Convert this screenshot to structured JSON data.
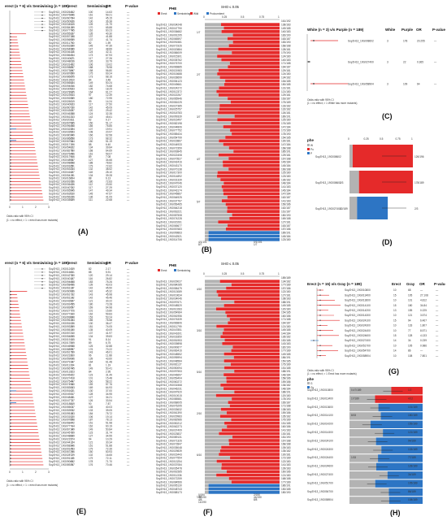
{
  "figure": {
    "panel_labels": [
      "(A)",
      "(B)",
      "(C)",
      "(D)",
      "(E)",
      "(F)",
      "(G)",
      "(H)"
    ],
    "colors": {
      "red": "#e52a2a",
      "blue": "#2d75c4",
      "gray": "#b3b3b3",
      "dark": "#333333"
    }
  },
  "panelA": {
    "title": "erect (n = 6) v/s Semiwining (n = 189)",
    "headers": [
      "erect",
      "Semiwining",
      "OR",
      "P-value"
    ],
    "x_ticks": [
      "0",
      "1",
      "2",
      "3"
    ],
    "legend_line1": "Odds ratio with 95% CI",
    "legend_line2": "(1 = no effect; > 1 = erect has more mutants)",
    "row_count": 62
  },
  "panelB": {
    "legend_title": "PHE",
    "legend_items": [
      "Erect",
      "Semiwining",
      "Wild",
      "Prolcumbent"
    ],
    "axis_title": "SHO ≤ 0.05",
    "x_ticks": [
      "0",
      "0.25",
      "0.5",
      "0.75",
      "1"
    ],
    "left_labels": [
      "1/7",
      "2/7",
      "3/7",
      "4/7",
      "5/7"
    ],
    "right_top": "161/192",
    "bottom_labels": [
      "4/1/101",
      "0/1/101",
      "8/7",
      "1/7"
    ],
    "row_count": 62
  },
  "panelC": {
    "title": "White (n = 3) v/s Purple (n = 189)",
    "headers": [
      "White",
      "Purple",
      "OR",
      "P-value"
    ],
    "rows": [
      {
        "gene": "SoyZH13_19G008602",
        "white": "3",
        "purple": "178",
        "or": "20.255",
        "p": "—"
      },
      {
        "gene": "SoyZH13_19G027400",
        "white": "3",
        "purple": "22",
        "or": "0.365",
        "p": "—"
      },
      {
        "gene": "SoyZH13_19G058904",
        "white": "3",
        "purple": "109",
        "or": "64",
        "p": "—"
      }
    ],
    "legend_line1": "Odds ratio with 95% CI",
    "legend_line2": "(1 = no effect; > 1 White has more mutants)"
  },
  "panelD": {
    "legend_title": "phe",
    "legend_items": [
      "W",
      "Pu",
      "P"
    ],
    "x_ticks": [
      "0",
      "0.25",
      "0.5",
      "0.75",
      "1"
    ],
    "rows": [
      {
        "gene": "SoyZH13_19G008602",
        "left": "",
        "right": "126/196"
      },
      {
        "gene": "SoyZH13_19G008602",
        "left": "1/3",
        "right": "178/189"
      },
      {
        "gene": "SoyZH13_19G027400",
        "left": "22/189",
        "right": "2/3"
      }
    ]
  },
  "panelE": {
    "title": "erect (n = 6) v/s Semiwining (n = 189)",
    "headers": [
      "erect",
      "Semiwining",
      "OR",
      "P-value"
    ],
    "x_ticks": [
      "0",
      "1",
      "2",
      "3"
    ],
    "legend_line1": "Odds ratio with 95% CI",
    "legend_line2": "(1 = no effect; > 1 = erect has more mutants)",
    "row_count": 62
  },
  "panelF": {
    "legend_title": "PHE",
    "legend_items": [
      "Erect",
      "Semiwining"
    ],
    "axis_title": "SHO ≤ 0.05",
    "x_ticks": [
      "0",
      "0.25",
      "0.5",
      "0.75",
      "1"
    ],
    "right_top": "189/189",
    "left_labels": [
      "4/10",
      "3/10",
      "5/10",
      "2/10",
      "6/10",
      "1/10"
    ],
    "bottom_labels": [
      "0/190",
      "2/190",
      "40/190",
      "44/190",
      "4/8",
      "8/8",
      "14/190"
    ],
    "row_count": 62
  },
  "panelG": {
    "title": "Erect (n = 15) v/s Gray (n = 189)",
    "headers": [
      "Erect",
      "Gray",
      "OR",
      "P-value"
    ],
    "rows": [
      {
        "gene": "SoyZH13_19G010800",
        "a": "10",
        "b": "68",
        "or": "—",
        "p": "—"
      },
      {
        "gene": "SoyZH13_19G013400",
        "a": "15",
        "b": "105",
        "or": "27.108",
        "p": "—"
      },
      {
        "gene": "SoyZH13_19G013600",
        "a": "10",
        "b": "101",
        "or": "4.812",
        "p": "—"
      },
      {
        "gene": "SoyZH13_19G014100",
        "a": "15",
        "b": "180",
        "or": "34.84",
        "p": "—"
      },
      {
        "gene": "SoyZH13_19G014200",
        "a": "13",
        "b": "155",
        "or": "0.225",
        "p": "—"
      },
      {
        "gene": "SoyZH13_19G014300",
        "a": "10",
        "b": "121",
        "or": "3.574",
        "p": "—"
      },
      {
        "gene": "SoyZH13_19G024100",
        "a": "15",
        "b": "94",
        "or": "6.467",
        "p": "—"
      },
      {
        "gene": "SoyZH13_19G024300",
        "a": "10",
        "b": "133",
        "or": "1.807",
        "p": "—"
      },
      {
        "gene": "SoyZH13_19G024400",
        "a": "10",
        "b": "77",
        "or": "8.571",
        "p": "—"
      },
      {
        "gene": "SoyZH13_19G024600",
        "a": "15",
        "b": "128",
        "or": "4.133",
        "p": "—"
      },
      {
        "gene": "SoyZH13_19G027400",
        "a": "14",
        "b": "34",
        "or": "0.239",
        "p": "—"
      },
      {
        "gene": "SoyZH13_19G051700",
        "a": "10",
        "b": "105",
        "or": "0.986",
        "p": "—"
      },
      {
        "gene": "SoyZH13_19G054700",
        "a": "14",
        "b": "86",
        "or": "—",
        "p": "—"
      },
      {
        "gene": "SoyZH13_19G058904",
        "a": "10",
        "b": "108",
        "or": "7.801",
        "p": "—"
      }
    ],
    "legend_line1": "Odds ratio with 95% CI",
    "legend_line2": "(1 = no effect; > 1 Erect has more mutants)"
  },
  "panelH": {
    "legend_title": "phe",
    "legend_items": [
      "G",
      "Gy"
    ],
    "rows": [
      {
        "gene": "SoyZH13_19G010800",
        "left": "0.47/189",
        "right": "1/2",
        "color": "red"
      },
      {
        "gene": "SoyZH13_19G013400",
        "left": "17/189",
        "right": "4/12",
        "color": "red"
      },
      {
        "gene": "SoyZH13_19G013600",
        "left": "",
        "right": "101/189",
        "color": "blue"
      },
      {
        "gene": "SoyZH13_19G014100",
        "left": "8/15",
        "right": "180/189",
        "color": "blue"
      },
      {
        "gene": "SoyZH13_19G014200",
        "left": "",
        "right": "155/189",
        "color": "blue"
      },
      {
        "gene": "SoyZH13_19G014300",
        "left": "",
        "right": "121/189",
        "color": "blue"
      },
      {
        "gene": "SoyZH13_19G024100",
        "left": "",
        "right": "94/189",
        "color": "blue"
      },
      {
        "gene": "SoyZH13_19G024300",
        "left": "",
        "right": "133/189",
        "color": "blue"
      },
      {
        "gene": "SoyZH13_19G024400",
        "left": "1/15",
        "right": "77/189",
        "color": "blue"
      },
      {
        "gene": "SoyZH13_19G024600",
        "left": "",
        "right": "128/189",
        "color": "blue"
      },
      {
        "gene": "SoyZH13_19G027400",
        "left": "",
        "right": "34/189",
        "color": "blue"
      },
      {
        "gene": "SoyZH13_19G051700",
        "left": "",
        "right": "105/189",
        "color": "blue"
      },
      {
        "gene": "SoyZH13_19G054700",
        "left": "",
        "right": "86/189",
        "color": "blue"
      },
      {
        "gene": "SoyZH13_19G058904",
        "left": "",
        "right": "108/189",
        "color": "blue"
      }
    ]
  }
}
